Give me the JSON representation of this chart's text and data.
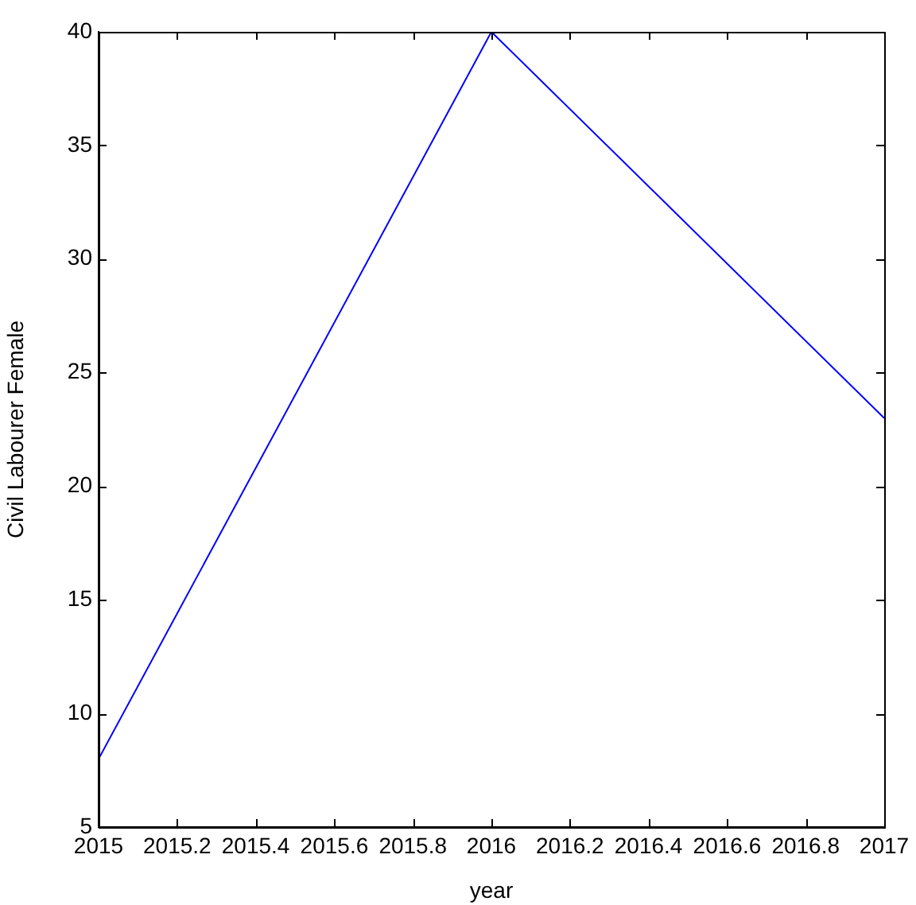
{
  "chart_data": {
    "type": "line",
    "x": [
      2015,
      2016,
      2017
    ],
    "series": [
      {
        "color": "#0000ff",
        "values": [
          8,
          40,
          23
        ]
      }
    ],
    "xlabel": "year",
    "ylabel": "Civil Labourer Female",
    "xlim": [
      2015,
      2017
    ],
    "xticks": [
      2015,
      2015.2,
      2015.4,
      2015.6,
      2015.8,
      2016,
      2016.2,
      2016.4,
      2016.6,
      2016.8,
      2017
    ],
    "ylim": [
      5,
      40
    ],
    "yticks": [
      5,
      10,
      15,
      20,
      25,
      30,
      35,
      40
    ],
    "grid": false,
    "legend": false,
    "marker": "none",
    "line_style": "solid"
  }
}
